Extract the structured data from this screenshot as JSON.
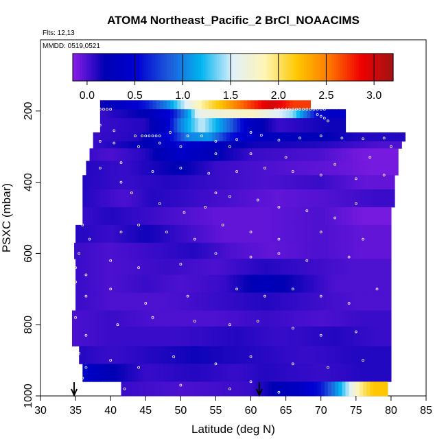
{
  "chart_data": {
    "type": "heatmap",
    "title": "ATOM4 Northeast_Pacific_2 BrCl_NOAACIMS",
    "flights_label": "Flts: 12,13",
    "dates_label": "MMDD: 0519,0521",
    "xlabel": "Latitude (deg N)",
    "ylabel": "PSXC (mbar)",
    "xlim": [
      30,
      85
    ],
    "ylim": [
      1000,
      0
    ],
    "x_ticks": [
      30,
      35,
      40,
      45,
      50,
      55,
      60,
      65,
      70,
      75,
      80,
      85
    ],
    "y_ticks": [
      200,
      400,
      600,
      800,
      1000
    ],
    "colorbar": {
      "range": [
        -0.15,
        3.2
      ],
      "ticks": [
        0.0,
        0.5,
        1.0,
        1.5,
        2.0,
        2.5,
        3.0
      ],
      "tick_labels": [
        "0.0",
        "0.5",
        "1.0",
        "1.5",
        "2.0",
        "2.5",
        "3.0"
      ],
      "colors": [
        "#8b1ee6",
        "#0000b4",
        "#0000d2",
        "#1e5adc",
        "#00b4f0",
        "#e1f0fa",
        "#fff5b4",
        "#ffc800",
        "#ff7800",
        "#f00000",
        "#a01414"
      ]
    },
    "markers_at_latitude": [
      34.8,
      61.2
    ],
    "bands": [
      {
        "p": [
          170,
          195
        ],
        "lat": [
          38.5,
          68.5
        ],
        "segments": [
          [
            38.5,
            0.15
          ],
          [
            45,
            0.6
          ],
          [
            48,
            1.0
          ],
          [
            50,
            1.4
          ],
          [
            53,
            1.9
          ],
          [
            58,
            2.5
          ],
          [
            63,
            3.0
          ],
          [
            66,
            2.7
          ]
        ]
      },
      {
        "p": [
          195,
          220
        ],
        "lat": [
          38.5,
          73.5
        ],
        "segments": [
          [
            38.5,
            0.05
          ],
          [
            45,
            0.2
          ],
          [
            49,
            0.6
          ],
          [
            51,
            1.1
          ],
          [
            52.5,
            1.6
          ],
          [
            60,
            1.8
          ],
          [
            66,
            1.4
          ],
          [
            70,
            0.4
          ]
        ]
      },
      {
        "p": [
          220,
          260
        ],
        "lat": [
          38.5,
          73.5
        ],
        "segments": [
          [
            38.5,
            0.05
          ],
          [
            45,
            0.1
          ],
          [
            48,
            0.4
          ],
          [
            50,
            1.0
          ],
          [
            53,
            1.5
          ],
          [
            57,
            0.9
          ],
          [
            60,
            0.3
          ],
          [
            64,
            0.05
          ],
          [
            71,
            0.15
          ]
        ]
      },
      {
        "p": [
          260,
          285
        ],
        "lat": [
          37.5,
          82
        ],
        "segments": [
          [
            37.5,
            0.05
          ],
          [
            44,
            0.1
          ],
          [
            49,
            0.6
          ],
          [
            51,
            1.0
          ],
          [
            54,
            1.1
          ],
          [
            57,
            0.6
          ],
          [
            62,
            0.3
          ],
          [
            70,
            0.2
          ],
          [
            76,
            0.1
          ]
        ]
      },
      {
        "p": [
          285,
          305
        ],
        "lat": [
          37.5,
          81.5
        ],
        "segments": [
          [
            37.5,
            0.05
          ],
          [
            45,
            0.2
          ],
          [
            50,
            0.5
          ],
          [
            55,
            0.3
          ],
          [
            60,
            0.15
          ],
          [
            70,
            0.1
          ],
          [
            78,
            0.0
          ]
        ]
      },
      {
        "p": [
          305,
          340
        ],
        "lat": [
          37,
          81
        ],
        "segments": [
          [
            37,
            0.05
          ],
          [
            40,
            0.0
          ],
          [
            45,
            0.1
          ],
          [
            50,
            0.4
          ],
          [
            55,
            0.2
          ],
          [
            60,
            0.05
          ],
          [
            70,
            0.0
          ],
          [
            76,
            -0.1
          ]
        ]
      },
      {
        "p": [
          340,
          380
        ],
        "lat": [
          36.5,
          81
        ],
        "segments": [
          [
            36.5,
            0.1
          ],
          [
            42,
            0.05
          ],
          [
            50,
            0.2
          ],
          [
            55,
            0.05
          ],
          [
            62,
            0.0
          ],
          [
            72,
            -0.05
          ],
          [
            77,
            -0.1
          ]
        ]
      },
      {
        "p": [
          380,
          420
        ],
        "lat": [
          36,
          80.5
        ],
        "segments": [
          [
            36,
            0.1
          ],
          [
            42,
            0.05
          ],
          [
            48,
            0.1
          ],
          [
            55,
            0.05
          ],
          [
            62,
            0.0
          ],
          [
            70,
            0.05
          ],
          [
            76,
            -0.05
          ]
        ]
      },
      {
        "p": [
          420,
          470
        ],
        "lat": [
          36,
          80.5
        ],
        "segments": [
          [
            36,
            0.1
          ],
          [
            42,
            0.0
          ],
          [
            46,
            0.1
          ],
          [
            52,
            0.05
          ],
          [
            58,
            0.0
          ],
          [
            64,
            -0.05
          ],
          [
            72,
            0.0
          ],
          [
            78,
            0.05
          ]
        ]
      },
      {
        "p": [
          470,
          520
        ],
        "lat": [
          36,
          80
        ],
        "segments": [
          [
            36,
            0.05
          ],
          [
            40,
            0.1
          ],
          [
            45,
            0.05
          ],
          [
            50,
            0.0
          ],
          [
            55,
            -0.05
          ],
          [
            62,
            -0.05
          ],
          [
            70,
            0.0
          ],
          [
            76,
            -0.1
          ]
        ]
      },
      {
        "p": [
          520,
          570
        ],
        "lat": [
          35,
          80
        ],
        "segments": [
          [
            35,
            0.1
          ],
          [
            40,
            0.05
          ],
          [
            45,
            0.15
          ],
          [
            50,
            0.05
          ],
          [
            56,
            -0.05
          ],
          [
            62,
            -0.05
          ],
          [
            70,
            0.0
          ],
          [
            76,
            -0.05
          ]
        ]
      },
      {
        "p": [
          570,
          615
        ],
        "lat": [
          34.8,
          80
        ],
        "segments": [
          [
            34.8,
            0.05
          ],
          [
            40,
            0.0
          ],
          [
            46,
            0.05
          ],
          [
            52,
            0.1
          ],
          [
            57,
            0.0
          ],
          [
            63,
            -0.05
          ],
          [
            70,
            0.0
          ],
          [
            76,
            -0.05
          ]
        ]
      },
      {
        "p": [
          615,
          660
        ],
        "lat": [
          35,
          80
        ],
        "segments": [
          [
            35,
            0.05
          ],
          [
            40,
            0.0
          ],
          [
            48,
            0.05
          ],
          [
            55,
            0.0
          ],
          [
            62,
            0.1
          ],
          [
            68,
            0.05
          ],
          [
            74,
            0.0
          ]
        ]
      },
      {
        "p": [
          660,
          710
        ],
        "lat": [
          35,
          80
        ],
        "segments": [
          [
            35,
            0.05
          ],
          [
            40,
            0.0
          ],
          [
            45,
            0.05
          ],
          [
            50,
            0.0
          ],
          [
            56,
            0.05
          ],
          [
            62,
            0.25
          ],
          [
            66,
            0.15
          ],
          [
            72,
            0.0
          ]
        ]
      },
      {
        "p": [
          710,
          760
        ],
        "lat": [
          35,
          80
        ],
        "segments": [
          [
            35,
            0.05
          ],
          [
            40,
            0.0
          ],
          [
            48,
            0.0
          ],
          [
            55,
            0.05
          ],
          [
            62,
            0.1
          ],
          [
            68,
            0.05
          ],
          [
            75,
            0.0
          ]
        ]
      },
      {
        "p": [
          760,
          805
        ],
        "lat": [
          34.5,
          80
        ],
        "segments": [
          [
            34.5,
            0.0
          ],
          [
            40,
            0.05
          ],
          [
            46,
            0.0
          ],
          [
            55,
            0.0
          ],
          [
            62,
            0.05
          ],
          [
            70,
            0.0
          ],
          [
            76,
            0.05
          ]
        ]
      },
      {
        "p": [
          805,
          860
        ],
        "lat": [
          34.5,
          80
        ],
        "segments": [
          [
            34.5,
            0.0
          ],
          [
            40,
            0.05
          ],
          [
            50,
            0.05
          ],
          [
            58,
            0.1
          ],
          [
            64,
            0.05
          ],
          [
            72,
            0.1
          ],
          [
            78,
            0.05
          ]
        ]
      },
      {
        "p": [
          860,
          910
        ],
        "lat": [
          35.5,
          80
        ],
        "segments": [
          [
            35.5,
            0.1
          ],
          [
            40,
            0.05
          ],
          [
            46,
            0.1
          ],
          [
            52,
            0.15
          ],
          [
            60,
            0.1
          ],
          [
            68,
            0.05
          ],
          [
            75,
            0.1
          ]
        ]
      },
      {
        "p": [
          910,
          960
        ],
        "lat": [
          36,
          80
        ],
        "segments": [
          [
            36,
            0.4
          ],
          [
            40,
            0.2
          ],
          [
            45,
            0.05
          ],
          [
            52,
            0.1
          ],
          [
            58,
            0.05
          ],
          [
            62,
            0.1
          ],
          [
            70,
            0.05
          ],
          [
            76,
            0.1
          ]
        ]
      },
      {
        "p": [
          960,
          1000
        ],
        "lat": [
          41.5,
          79.5
        ],
        "segments": [
          [
            41.5,
            0.05
          ],
          [
            50,
            0.0
          ],
          [
            60,
            0.05
          ],
          [
            66,
            0.3
          ],
          [
            70,
            0.6
          ],
          [
            72,
            1.0
          ],
          [
            74,
            1.5
          ],
          [
            76,
            2.0
          ],
          [
            77.5,
            2.2
          ]
        ]
      }
    ],
    "points": [
      [
        38.5,
        195
      ],
      [
        39,
        195
      ],
      [
        39.5,
        195
      ],
      [
        40,
        195
      ],
      [
        63.5,
        195
      ],
      [
        64,
        195
      ],
      [
        64.5,
        195
      ],
      [
        65,
        195
      ],
      [
        65.5,
        195
      ],
      [
        66,
        195
      ],
      [
        66.5,
        195
      ],
      [
        67,
        195
      ],
      [
        67.5,
        195
      ],
      [
        68,
        195
      ],
      [
        68.5,
        195
      ],
      [
        69,
        195
      ],
      [
        69.5,
        195
      ],
      [
        70,
        195
      ],
      [
        70.5,
        195
      ],
      [
        69.5,
        210
      ],
      [
        70,
        215
      ],
      [
        70.5,
        220
      ],
      [
        71,
        228
      ],
      [
        38.5,
        240
      ],
      [
        40.5,
        255
      ],
      [
        43.5,
        270
      ],
      [
        44.5,
        270
      ],
      [
        45,
        270
      ],
      [
        45.5,
        270
      ],
      [
        46,
        270
      ],
      [
        46.5,
        270
      ],
      [
        47,
        270
      ],
      [
        48.5,
        260
      ],
      [
        51,
        270
      ],
      [
        53,
        270
      ],
      [
        55,
        285
      ],
      [
        58,
        280
      ],
      [
        57,
        300
      ],
      [
        60,
        260
      ],
      [
        61.5,
        268
      ],
      [
        64,
        282
      ],
      [
        67,
        276
      ],
      [
        70,
        270
      ],
      [
        73,
        276
      ],
      [
        76,
        278
      ],
      [
        79,
        276
      ],
      [
        38.5,
        285
      ],
      [
        40.5,
        290
      ],
      [
        44,
        300
      ],
      [
        47,
        290
      ],
      [
        50,
        300
      ],
      [
        55,
        320
      ],
      [
        60,
        320
      ],
      [
        65,
        330
      ],
      [
        72,
        350
      ],
      [
        77,
        330
      ],
      [
        80,
        300
      ],
      [
        38.5,
        360
      ],
      [
        41.5,
        345
      ],
      [
        46,
        370
      ],
      [
        50,
        360
      ],
      [
        54,
        375
      ],
      [
        58,
        370
      ],
      [
        62,
        360
      ],
      [
        66,
        370
      ],
      [
        70,
        380
      ],
      [
        75,
        390
      ],
      [
        79,
        380
      ],
      [
        41.5,
        400
      ],
      [
        43,
        430
      ],
      [
        47,
        460
      ],
      [
        50.5,
        485
      ],
      [
        53.5,
        470
      ],
      [
        55,
        430
      ],
      [
        57,
        440
      ],
      [
        61,
        450
      ],
      [
        64,
        470
      ],
      [
        68,
        480
      ],
      [
        72,
        500
      ],
      [
        75,
        460
      ],
      [
        36,
        520
      ],
      [
        37,
        560
      ],
      [
        41.5,
        540
      ],
      [
        44,
        520
      ],
      [
        48,
        540
      ],
      [
        52,
        560
      ],
      [
        56,
        520
      ],
      [
        60,
        540
      ],
      [
        64,
        560
      ],
      [
        70,
        540
      ],
      [
        76,
        560
      ],
      [
        35.5,
        600
      ],
      [
        35,
        640
      ],
      [
        36.5,
        660
      ],
      [
        40,
        620
      ],
      [
        44,
        640
      ],
      [
        50,
        630
      ],
      [
        55,
        600
      ],
      [
        60,
        610
      ],
      [
        64,
        600
      ],
      [
        68,
        620
      ],
      [
        74,
        610
      ],
      [
        35,
        680
      ],
      [
        36.5,
        720
      ],
      [
        40,
        700
      ],
      [
        45,
        740
      ],
      [
        51,
        720
      ],
      [
        58,
        700
      ],
      [
        62,
        720
      ],
      [
        66,
        700
      ],
      [
        70,
        720
      ],
      [
        74,
        740
      ],
      [
        78,
        700
      ],
      [
        35,
        780
      ],
      [
        36.5,
        830
      ],
      [
        41,
        800
      ],
      [
        46,
        780
      ],
      [
        52,
        790
      ],
      [
        57,
        800
      ],
      [
        61,
        790
      ],
      [
        66,
        810
      ],
      [
        70,
        830
      ],
      [
        75,
        820
      ],
      [
        35.5,
        880
      ],
      [
        36.5,
        920
      ],
      [
        40,
        900
      ],
      [
        44,
        920
      ],
      [
        49,
        890
      ],
      [
        55,
        910
      ],
      [
        60,
        890
      ],
      [
        66,
        910
      ],
      [
        71,
        920
      ],
      [
        76,
        900
      ],
      [
        36,
        950
      ],
      [
        42,
        980
      ],
      [
        50,
        970
      ],
      [
        57,
        980
      ],
      [
        60,
        960
      ],
      [
        64,
        990
      ]
    ]
  }
}
